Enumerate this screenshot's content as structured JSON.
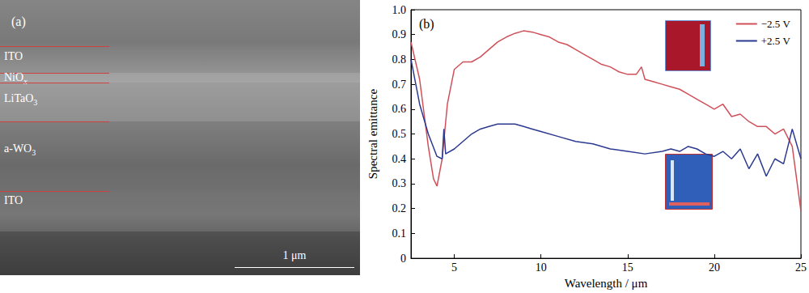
{
  "panel_a": {
    "label": "(a)",
    "layers": [
      {
        "text": "ITO",
        "subscript": null
      },
      {
        "text": "NiO",
        "subscript": "x"
      },
      {
        "text": "LiTaO",
        "subscript": "3"
      },
      {
        "text": "a-WO",
        "subscript": "3"
      },
      {
        "text": "ITO",
        "subscript": null
      }
    ],
    "scale_bar": "1 μm"
  },
  "chart_data": {
    "type": "line",
    "title": "(b)",
    "x_label": "Wavelength / μm",
    "y_label": "Spectral emittance",
    "xlim": [
      2.5,
      25
    ],
    "xticks": [
      5,
      10,
      15,
      20,
      25
    ],
    "ylim": [
      0,
      1
    ],
    "yticks": [
      0,
      0.1,
      0.2,
      0.3,
      0.4,
      0.5,
      0.6,
      0.7,
      0.8,
      0.9,
      {
        "value": 1,
        "label": "1.0"
      }
    ],
    "grid": false,
    "legend": "upper right",
    "series": [
      {
        "name": "−2.5 V",
        "color": "#d0505a",
        "x": [
          2.5,
          3,
          3.5,
          3.8,
          4.0,
          4.3,
          4.6,
          5,
          5.5,
          6,
          6.5,
          7,
          7.5,
          8,
          8.5,
          9,
          9.5,
          10,
          10.5,
          11,
          11.5,
          12,
          12.5,
          13,
          13.5,
          14,
          14.5,
          15,
          15.5,
          15.8,
          16,
          16.5,
          17,
          17.5,
          18,
          18.5,
          19,
          19.5,
          20,
          20.5,
          21,
          21.5,
          22,
          22.5,
          23,
          23.5,
          24,
          24.5,
          25
        ],
        "values": [
          0.87,
          0.72,
          0.45,
          0.32,
          0.29,
          0.4,
          0.62,
          0.76,
          0.79,
          0.79,
          0.81,
          0.84,
          0.87,
          0.89,
          0.905,
          0.915,
          0.91,
          0.9,
          0.89,
          0.87,
          0.86,
          0.84,
          0.82,
          0.8,
          0.78,
          0.77,
          0.75,
          0.74,
          0.74,
          0.77,
          0.72,
          0.71,
          0.7,
          0.69,
          0.68,
          0.66,
          0.64,
          0.62,
          0.6,
          0.62,
          0.57,
          0.58,
          0.55,
          0.53,
          0.53,
          0.5,
          0.52,
          0.45,
          0.19
        ]
      },
      {
        "name": "+2.5 V",
        "color": "#2b3990",
        "x": [
          2.5,
          3,
          3.5,
          4.0,
          4.3,
          4.4,
          4.5,
          5,
          5.5,
          6,
          6.5,
          7,
          7.5,
          8,
          8.5,
          9,
          9.5,
          10,
          11,
          12,
          13,
          14,
          15,
          16,
          17,
          17.5,
          18,
          18.5,
          19,
          19.5,
          20,
          20.5,
          21,
          21.5,
          22,
          22.5,
          23,
          23.5,
          24,
          24.5,
          25
        ],
        "values": [
          0.8,
          0.62,
          0.5,
          0.41,
          0.4,
          0.52,
          0.42,
          0.44,
          0.47,
          0.5,
          0.52,
          0.53,
          0.54,
          0.54,
          0.54,
          0.53,
          0.52,
          0.51,
          0.49,
          0.47,
          0.46,
          0.44,
          0.43,
          0.42,
          0.43,
          0.44,
          0.43,
          0.45,
          0.44,
          0.42,
          0.41,
          0.43,
          0.4,
          0.44,
          0.36,
          0.42,
          0.33,
          0.4,
          0.38,
          0.52,
          0.4
        ]
      }
    ]
  }
}
